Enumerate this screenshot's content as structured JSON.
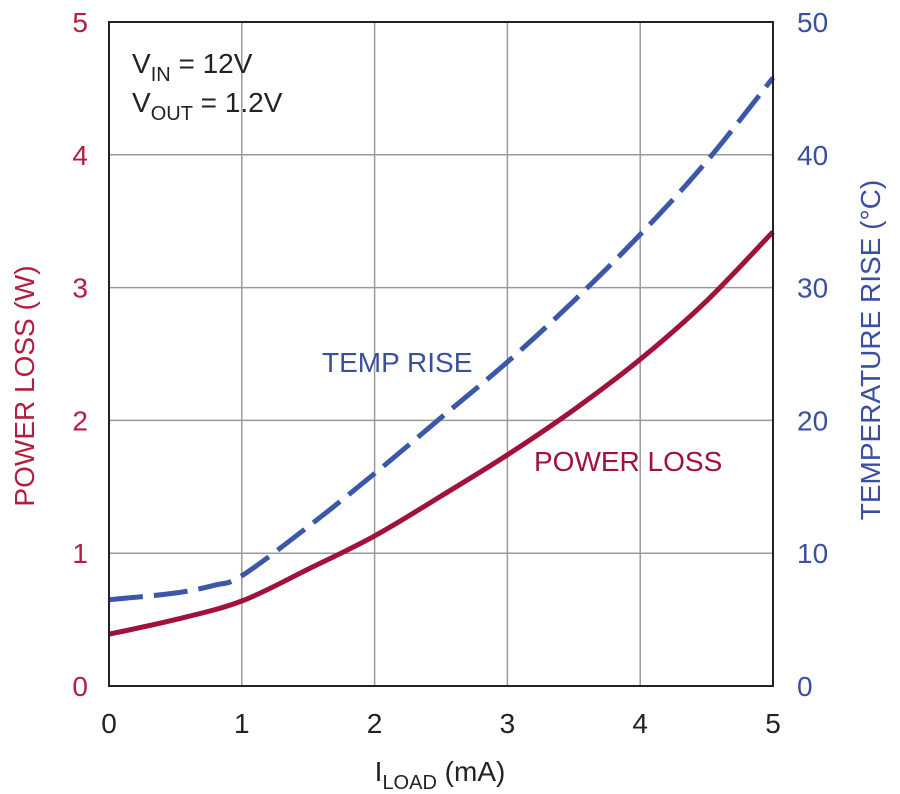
{
  "chart_data": {
    "type": "line",
    "xlabel_main": "I",
    "xlabel_sub": "LOAD",
    "xlabel_unit": " (mA)",
    "ylabel_left": "POWER LOSS (W)",
    "ylabel_right": "TEMPERATURE RISE (°C)",
    "xlim": [
      0,
      5
    ],
    "ylim_left": [
      0,
      5
    ],
    "ylim_right": [
      0,
      50
    ],
    "x_ticks": [
      "0",
      "1",
      "2",
      "3",
      "4",
      "5"
    ],
    "y_left_ticks": [
      "0",
      "1",
      "2",
      "3",
      "4",
      "5"
    ],
    "y_right_ticks": [
      "0",
      "10",
      "20",
      "30",
      "40",
      "50"
    ],
    "grid": true,
    "annotation": {
      "line1_main": "V",
      "line1_sub": "IN",
      "line1_rest": " = 12V",
      "line2_main": "V",
      "line2_sub": "OUT",
      "line2_rest": " = 1.2V"
    },
    "series": [
      {
        "name": "POWER LOSS",
        "axis": "left",
        "color": "#a0123a",
        "style": "solid",
        "x": [
          0,
          0.5,
          1.0,
          1.5,
          2.0,
          2.5,
          3.0,
          3.5,
          4.0,
          4.5,
          5.0
        ],
        "values": [
          0.39,
          0.5,
          0.64,
          0.88,
          1.13,
          1.43,
          1.74,
          2.08,
          2.46,
          2.9,
          3.42
        ]
      },
      {
        "name": "TEMP RISE",
        "axis": "right",
        "color": "#3b57a8",
        "style": "dashed",
        "x": [
          0,
          0.5,
          0.8,
          1.0,
          1.5,
          2.0,
          2.5,
          3.0,
          3.5,
          4.0,
          4.5,
          5.0
        ],
        "values": [
          6.5,
          7.0,
          7.6,
          8.3,
          12.0,
          16.0,
          20.2,
          24.4,
          29.0,
          34.0,
          39.5,
          45.8
        ]
      }
    ]
  }
}
